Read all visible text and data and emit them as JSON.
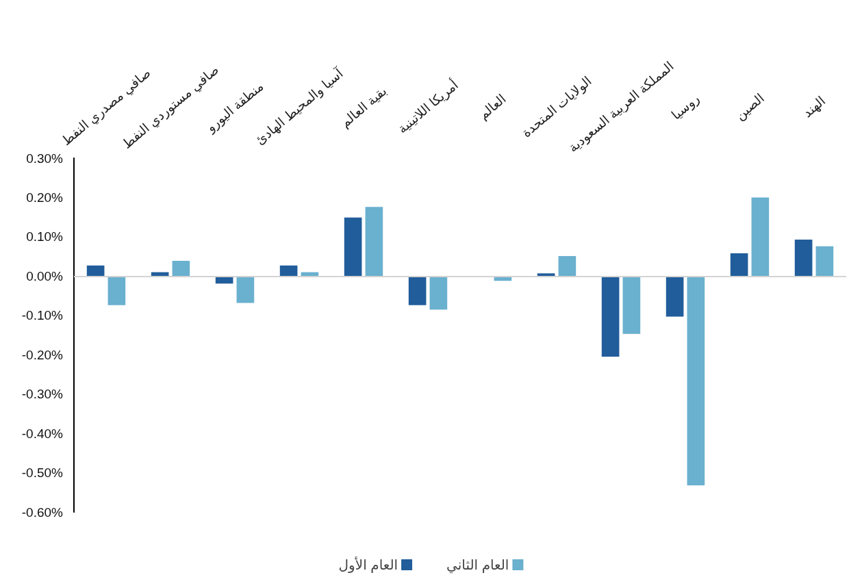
{
  "chart_data": {
    "type": "bar",
    "categories": [
      "صافي مصدري النفط",
      "صافي مستوردي النفط",
      "منطقة اليورو",
      "آسيا والمحيط الهادئ",
      "بقية العالم",
      "أمريكا اللاتينية",
      "العالم",
      "الولايات المتحدة",
      "المملكة العربية السعودية",
      "روسيا",
      "الصين",
      "الهند"
    ],
    "series": [
      {
        "name": "العام الأول",
        "color": "#215d9b",
        "values": [
          0.027,
          0.01,
          -0.019,
          0.027,
          0.149,
          -0.074,
          null,
          0.007,
          -0.205,
          -0.103,
          0.058,
          0.093
        ]
      },
      {
        "name": "العام الثاني",
        "color": "#6ab0cf",
        "values": [
          -0.074,
          0.039,
          -0.068,
          0.01,
          0.176,
          -0.085,
          -0.012,
          0.051,
          -0.147,
          -0.532,
          0.2,
          0.076
        ]
      }
    ],
    "ylim": [
      -0.6,
      0.3
    ],
    "yticks": [
      {
        "value": 0.3,
        "label": "0.30%"
      },
      {
        "value": 0.2,
        "label": "0.20%"
      },
      {
        "value": 0.1,
        "label": "0.10%"
      },
      {
        "value": 0,
        "label": "0.00%"
      },
      {
        "value": -0.1,
        "label": "-0.10%"
      },
      {
        "value": -0.2,
        "label": "-0.20%"
      },
      {
        "value": -0.3,
        "label": "-0.30%"
      },
      {
        "value": -0.4,
        "label": "-0.40%"
      },
      {
        "value": -0.5,
        "label": "-0.50%"
      },
      {
        "value": -0.6,
        "label": "-0.60%"
      }
    ],
    "grid": false,
    "ref_lines": [
      {
        "axis": "y",
        "value": 0,
        "color": "#d3d3d3"
      }
    ],
    "legend": "bottom"
  }
}
